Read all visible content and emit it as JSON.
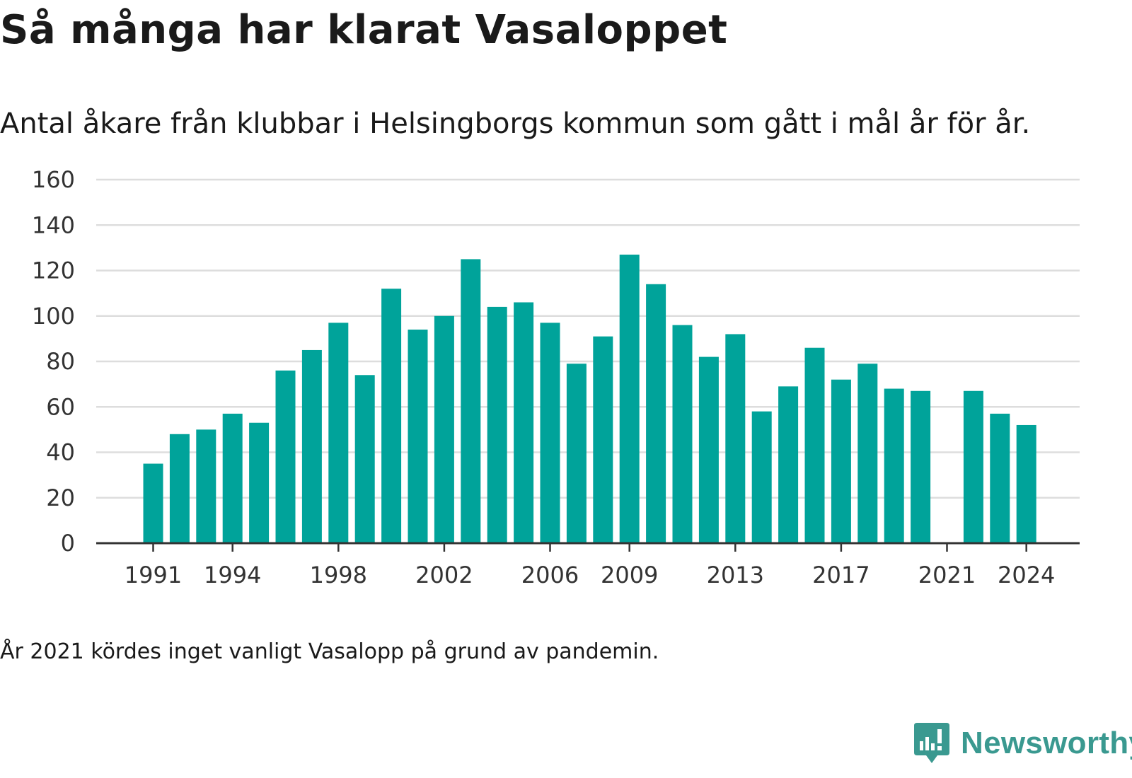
{
  "title": "Så många har klarat Vasaloppet",
  "subtitle": "Antal åkare från klubbar i Helsingborgs kommun som gått i mål år för år.",
  "note": "År 2021 kördes inget vanligt Vasalopp på grund av pandemin.",
  "brand": {
    "name": "Newsworthy",
    "icon": "newsworthy-logo-icon",
    "color": "#3a9990"
  },
  "chart_data": {
    "type": "bar",
    "categories": [
      1991,
      1992,
      1993,
      1994,
      1995,
      1996,
      1997,
      1998,
      1999,
      2000,
      2001,
      2002,
      2003,
      2004,
      2005,
      2006,
      2007,
      2008,
      2009,
      2010,
      2011,
      2012,
      2013,
      2014,
      2015,
      2016,
      2017,
      2018,
      2019,
      2020,
      2021,
      2022,
      2023,
      2024
    ],
    "values": [
      35,
      48,
      50,
      57,
      53,
      76,
      85,
      97,
      74,
      112,
      94,
      100,
      125,
      104,
      106,
      97,
      79,
      91,
      127,
      114,
      96,
      82,
      92,
      58,
      69,
      86,
      72,
      79,
      68,
      67,
      null,
      67,
      57,
      52
    ],
    "x_tick_labels": [
      "1991",
      "1994",
      "1998",
      "2002",
      "2006",
      "2009",
      "2013",
      "2017",
      "2021",
      "2024"
    ],
    "y_ticks": [
      0,
      20,
      40,
      60,
      80,
      100,
      120,
      140,
      160
    ],
    "ylim": [
      0,
      160
    ],
    "grid": true,
    "bar_color": "#00a39a",
    "xlabel": "",
    "ylabel": ""
  }
}
